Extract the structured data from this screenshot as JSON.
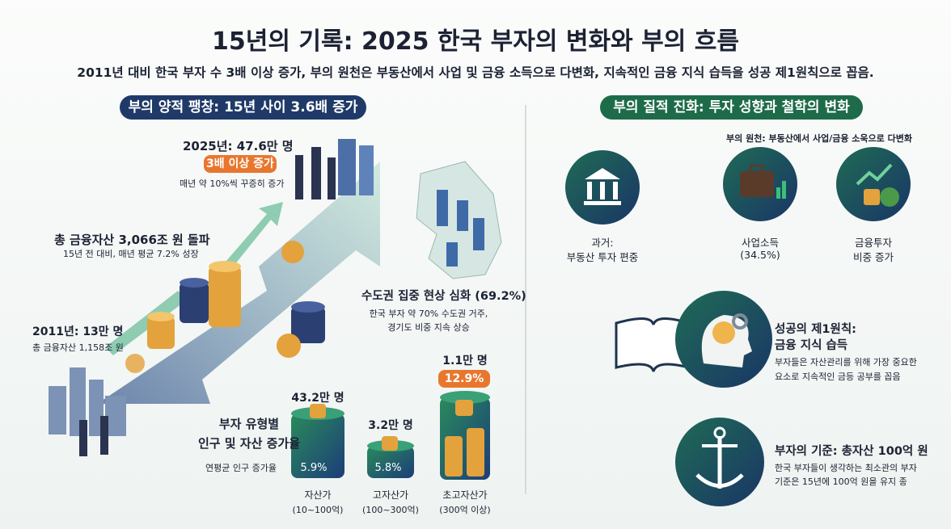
{
  "header": {
    "title": "15년의 기록: 2025 한국 부자의 변화와 부의 흐름",
    "subtitle": "2011년 대비 한국 부자 수 3배 이상 증가, 부의 원천은 부동산에서 사업 및 금융 소득으로 다변화, 지속적인 금융 지식 습득을 성공 제1원칙으로 꼽음."
  },
  "left": {
    "heading": "부의 양적 팽창: 15년 사이 3.6배 증가",
    "y2025": {
      "title": "2025년: 47.6만 명",
      "badge": "3배 이상 증가",
      "note": "매년 약 10%씩 꾸증히 증가"
    },
    "assets": {
      "title": "총 금융자산 3,066조 원 돌파",
      "note": "15년 전 대비, 매년 평균 7.2% 성장"
    },
    "y2011": {
      "title": "2011년: 13만 명",
      "note": "총 금융자산 1,158조 원"
    },
    "capital": {
      "title": "수도권 집중 현상 심화 (69.2%)",
      "note": [
        "한국 부자 약 70% 수도권 거주,",
        "경기도 비중 지속 상승"
      ]
    },
    "types": {
      "title": [
        "부자 유형별",
        "인구 및 자산 증가율"
      ],
      "note": "연평균 인구 증가율",
      "groups": [
        {
          "count": "43.2만 명",
          "rate": "5.9%",
          "name": "자산가",
          "range": "(10~100억)"
        },
        {
          "count": "3.2만 명",
          "rate": "5.8%",
          "name": "고자산가",
          "range": "(100~300억)"
        },
        {
          "count": "1.1만 명",
          "rate": "12.9%",
          "name": "초고자산가",
          "range": "(300억 이상)"
        }
      ]
    }
  },
  "right": {
    "heading": "부의 질적 진화: 투자 성향과 철학의 변화",
    "source_title": "부의 원천: 부동산에서 사업/금융 소욱으로 다변화",
    "sources": [
      {
        "label": [
          "과거:",
          "부동산 투자 편중"
        ]
      },
      {
        "label": [
          "사업소득",
          "(34.5%)"
        ]
      },
      {
        "label": [
          "금융투자",
          "비중 증가"
        ]
      }
    ],
    "principle": {
      "title": [
        "성공의 제1원칙:",
        "금융 지식 습득"
      ],
      "note": [
        "부자들은 자산관리를 위해 가장 중요한",
        "요소로 지속적인 금등 공부를 꼽음"
      ]
    },
    "standard": {
      "title": "부자의 기준: 총자산 100억 원",
      "note": [
        "한국 부자들이 생각하는 최소관의 부자",
        "기준은 15년에 100억 원을 유지 종"
      ]
    }
  }
}
